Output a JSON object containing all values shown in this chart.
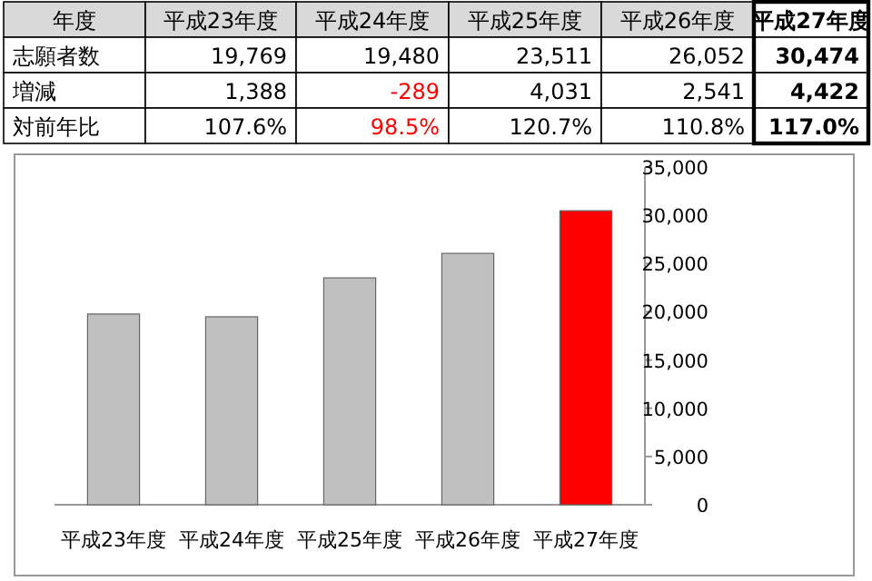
{
  "chart_data": [
    {
      "type": "other",
      "annotations": [
        "年度",
        "平成23年度",
        "平成24年度",
        "平成25年度",
        "平成26年度",
        "平成27年度",
        "志願者数",
        "19,769",
        "19,480",
        "23,511",
        "26,052",
        "30,474",
        "増減",
        "1,388",
        "-289",
        "4,031",
        "2,541",
        "4,422",
        "対前年比",
        "107.6%",
        "98.5%",
        "120.7%",
        "110.8%",
        "117.0%"
      ],
      "colors": [
        "#000000",
        "#000000",
        "#000000",
        "#000000",
        "#000000",
        "#000000",
        "#000000",
        "#000000",
        "#000000",
        "#000000",
        "#000000",
        "#000000",
        "#000000",
        "#000000",
        "#ff0000",
        "#000000",
        "#000000",
        "#000000",
        "#000000",
        "#000000",
        "#ff0000",
        "#000000",
        "#000000",
        "#000000"
      ]
    },
    {
      "type": "bar",
      "categories": [
        "平成23年度",
        "平成24年度",
        "平成25年度",
        "平成26年度",
        "平成27年度"
      ],
      "values": [
        19769,
        19480,
        23511,
        26052,
        30474
      ],
      "colors": [
        "#c0c0c0",
        "#c0c0c0",
        "#c0c0c0",
        "#c0c0c0",
        "#ff0000"
      ],
      "ylim": [
        0,
        35000
      ],
      "yticks": [
        {
          "value": 0,
          "label": "0"
        },
        {
          "value": 5000,
          "label": "5,000"
        },
        {
          "value": 10000,
          "label": "10,000"
        },
        {
          "value": 15000,
          "label": "15,000"
        },
        {
          "value": 20000,
          "label": "20,000"
        },
        {
          "value": 25000,
          "label": "25,000"
        },
        {
          "value": 30000,
          "label": "30,000"
        },
        {
          "value": 35000,
          "label": "35,000"
        }
      ]
    }
  ]
}
